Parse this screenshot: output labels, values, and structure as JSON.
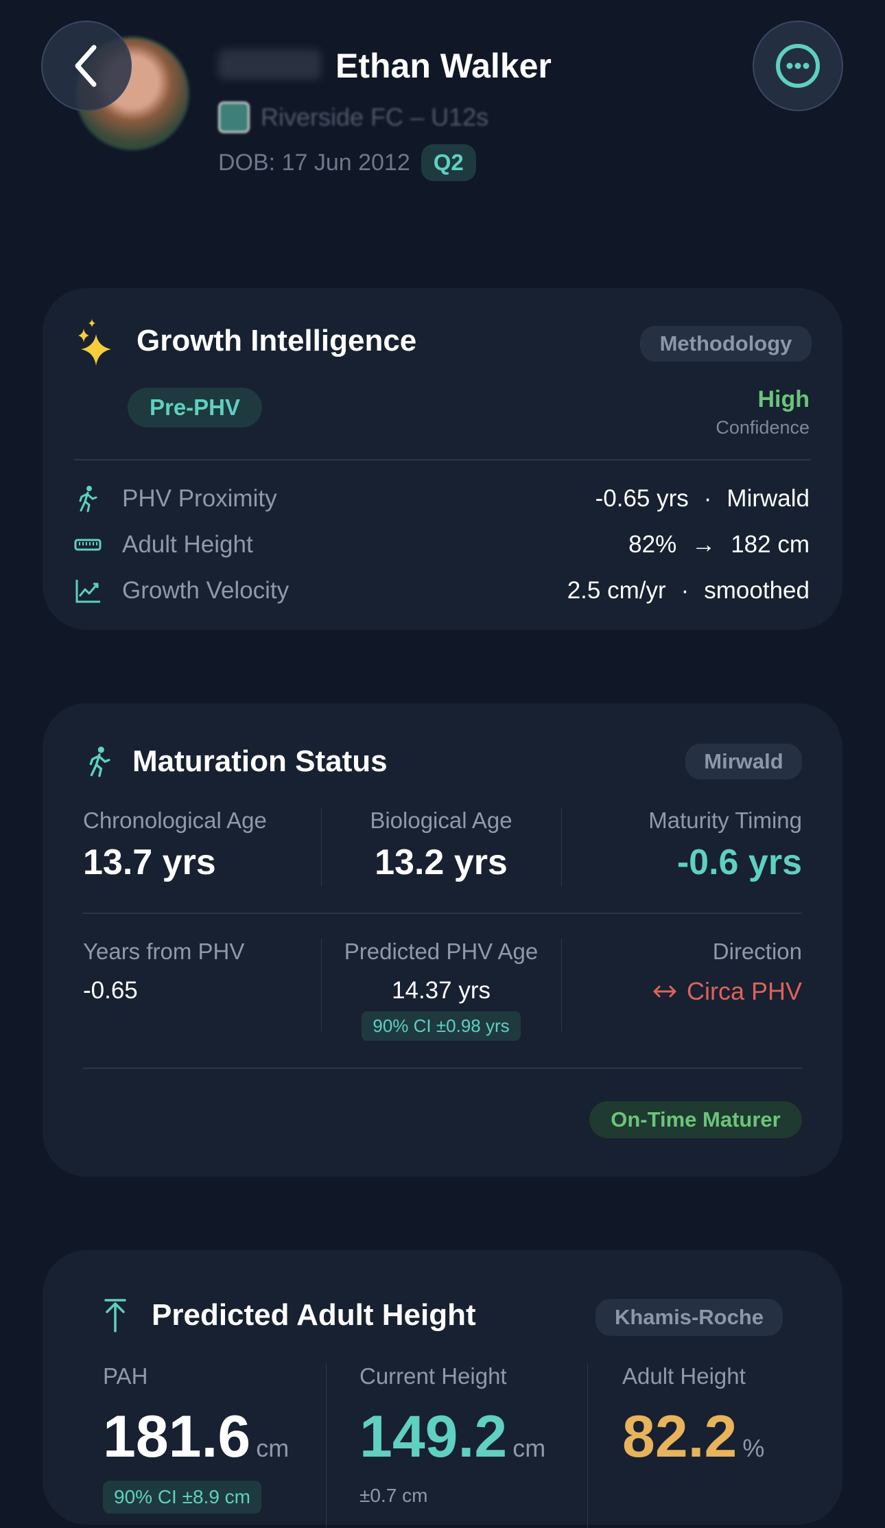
{
  "header": {
    "name": "Ethan Walker",
    "team": "Riverside FC – U12s",
    "dob": "DOB: 17 Jun 2012",
    "quarter_badge": "Q2",
    "back_icon": "chevron-left-icon",
    "more_icon": "ellipsis-circle-icon"
  },
  "growth_intelligence": {
    "title": "Growth Intelligence",
    "methodology_label": "Methodology",
    "stage_badge": "Pre-PHV",
    "confidence_level": "High",
    "confidence_label": "Confidence",
    "rows": [
      {
        "icon": "running-figure-icon",
        "label": "PHV Proximity",
        "value": "-0.65 yrs",
        "sep": "·",
        "detail": "Mirwald"
      },
      {
        "icon": "ruler-icon",
        "label": "Adult Height",
        "value": "82%",
        "sep": "→",
        "detail": "182 cm"
      },
      {
        "icon": "trend-chart-icon",
        "label": "Growth Velocity",
        "value": "2.5 cm/yr",
        "sep": "·",
        "detail": "smoothed"
      }
    ]
  },
  "maturation": {
    "title": "Maturation Status",
    "method_badge": "Mirwald",
    "chronological_age": {
      "label": "Chronological Age",
      "value": "13.7 yrs"
    },
    "biological_age": {
      "label": "Biological Age",
      "value": "13.2 yrs"
    },
    "maturity_timing": {
      "label": "Maturity Timing",
      "value": "-0.6 yrs"
    },
    "years_from_phv": {
      "label": "Years from PHV",
      "value": "-0.65"
    },
    "predicted_phv_age": {
      "label": "Predicted PHV Age",
      "value": "14.37 yrs",
      "ci": "90% CI ±0.98 yrs"
    },
    "direction": {
      "label": "Direction",
      "value": "Circa PHV"
    },
    "classification_badge": "On-Time Maturer"
  },
  "pah": {
    "title": "Predicted Adult Height",
    "method_badge": "Khamis-Roche",
    "pah": {
      "label": "PAH",
      "value": "181.6",
      "unit": "cm",
      "ci": "90% CI ±8.9 cm"
    },
    "current_height": {
      "label": "Current Height",
      "value": "149.2",
      "unit": "cm",
      "sub": "±0.7 cm"
    },
    "adult_height": {
      "label": "Adult Height",
      "value": "82.2",
      "unit": "%"
    }
  },
  "colors": {
    "background": "#101726",
    "card": "#172131",
    "teal": "#5fd0c1",
    "green": "#6cc47a",
    "red": "#e0625a",
    "orange": "#e8b35a",
    "gold": "#f5cd3d"
  }
}
